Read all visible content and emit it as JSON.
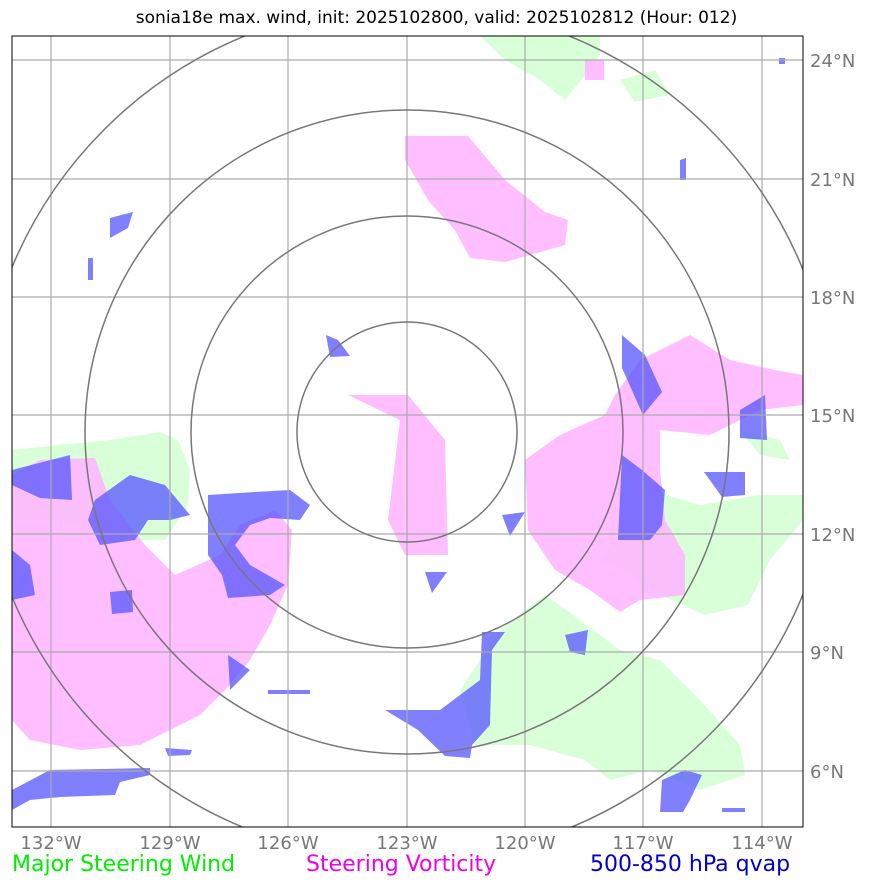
{
  "title": "sonia18e max. wind, init: 2025102800, valid: 2025102812 (Hour: 012)",
  "lat_labels": [
    "24°N",
    "21°N",
    "18°N",
    "15°N",
    "12°N",
    "9°N",
    "6°N"
  ],
  "lon_labels": [
    "132°W",
    "129°W",
    "126°W",
    "123°W",
    "120°W",
    "117°W",
    "114°W"
  ],
  "legend": {
    "wind": {
      "label": "Major Steering Wind",
      "color": "#00ee00"
    },
    "vorticity": {
      "label": "Steering Vorticity",
      "color": "#ee00ee"
    },
    "qvap": {
      "label": "500-850 hPa qvap",
      "color": "#0000cc"
    }
  },
  "colors": {
    "wind_fill": "#ccffcc",
    "vorticity_fill": "#ffb3ff",
    "qvap_fill": "#5555ff",
    "grid": "#aaaaaa",
    "rings": "#777777"
  }
}
